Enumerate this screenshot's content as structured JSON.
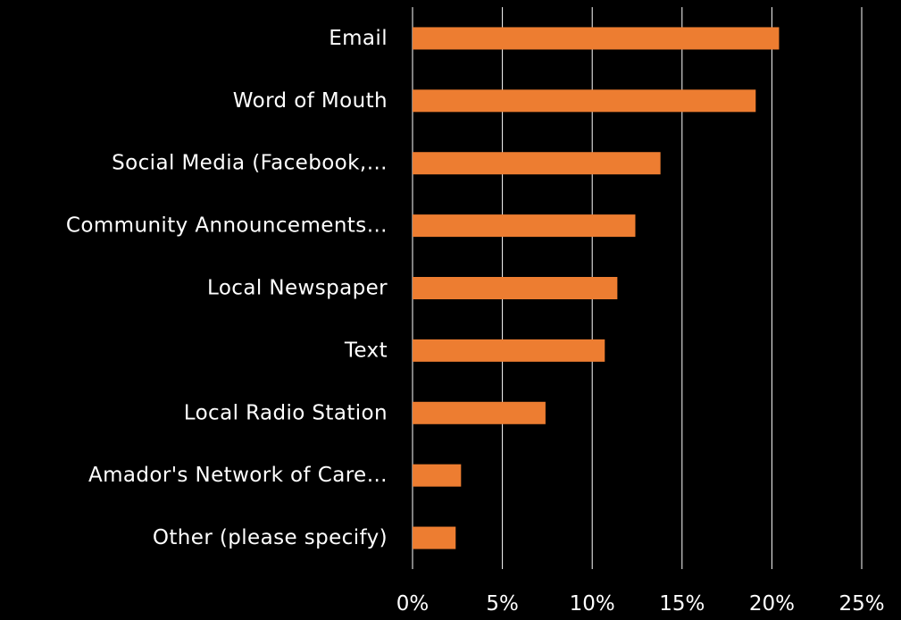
{
  "chart_data": {
    "type": "bar",
    "orientation": "horizontal",
    "categories": [
      "Email",
      "Word of Mouth",
      "Social Media (Facebook,…",
      "Community Announcements…",
      "Local Newspaper",
      "Text",
      "Local Radio Station",
      "Amador's Network of Care…",
      "Other (please specify)"
    ],
    "values": [
      20.4,
      19.1,
      13.8,
      12.4,
      11.4,
      10.7,
      7.4,
      2.7,
      2.4
    ],
    "title": "",
    "xlabel": "",
    "ylabel": "",
    "xlim": [
      0,
      25
    ],
    "xticks": [
      0,
      5,
      10,
      15,
      20,
      25
    ],
    "xtick_labels": [
      "0%",
      "5%",
      "10%",
      "15%",
      "20%",
      "25%"
    ],
    "grid": true,
    "legend": "none",
    "bar_color": "#ed7d31",
    "background_color": "#000000",
    "text_color": "#ffffff"
  }
}
